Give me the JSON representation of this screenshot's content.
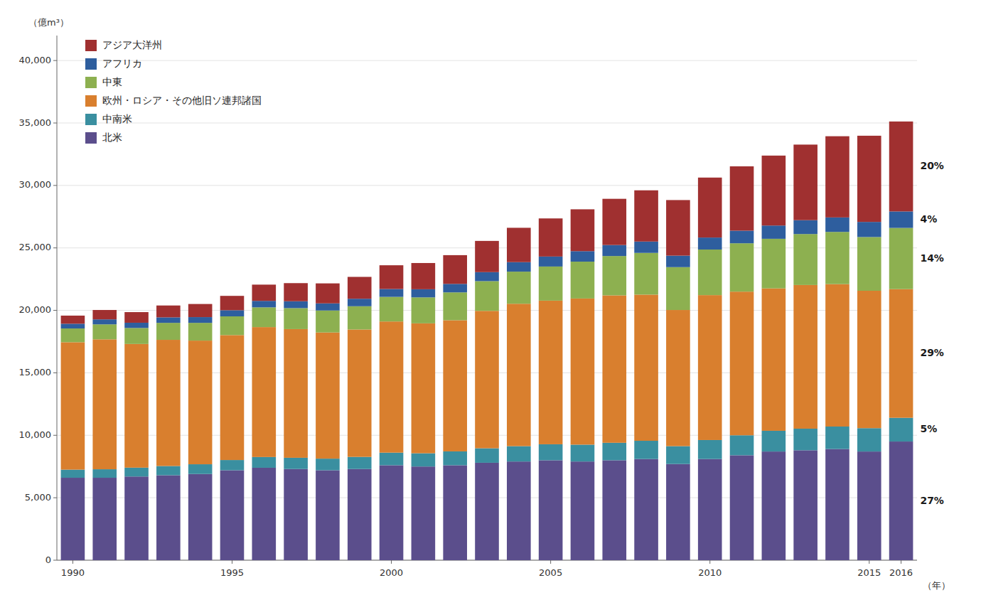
{
  "chart_data": {
    "type": "bar",
    "stacked": true,
    "categories": [
      1990,
      null,
      null,
      null,
      null,
      1995,
      null,
      null,
      null,
      null,
      2000,
      null,
      null,
      null,
      null,
      2005,
      null,
      null,
      null,
      null,
      2010,
      null,
      null,
      null,
      null,
      2015,
      2016
    ],
    "series": [
      {
        "name": "北米",
        "color": "#5b4e8c",
        "values": [
          6600,
          6600,
          6700,
          6800,
          6900,
          7200,
          7400,
          7300,
          7200,
          7300,
          7600,
          7500,
          7600,
          7800,
          7900,
          8000,
          7900,
          8000,
          8100,
          7700,
          8100,
          8400,
          8700,
          8800,
          8900,
          8700,
          9500
        ]
      },
      {
        "name": "中南米",
        "color": "#3a8fa0",
        "values": [
          650,
          680,
          710,
          740,
          780,
          820,
          860,
          900,
          930,
          970,
          1010,
          1060,
          1110,
          1160,
          1230,
          1280,
          1350,
          1400,
          1460,
          1430,
          1520,
          1600,
          1660,
          1730,
          1800,
          1870,
          1900
        ]
      },
      {
        "name": "欧州・ロシア・その他旧ソ連邦諸国",
        "color": "#d97f2e",
        "values": [
          10200,
          10400,
          9900,
          10100,
          9900,
          10000,
          10400,
          10300,
          10100,
          10200,
          10500,
          10400,
          10500,
          11000,
          11400,
          11500,
          11700,
          11800,
          11700,
          10900,
          11600,
          11500,
          11400,
          11500,
          11400,
          11000,
          10300
        ]
      },
      {
        "name": "中東",
        "color": "#8db050",
        "values": [
          1100,
          1200,
          1280,
          1360,
          1420,
          1500,
          1580,
          1680,
          1760,
          1860,
          1970,
          2080,
          2230,
          2380,
          2570,
          2730,
          2950,
          3150,
          3340,
          3430,
          3650,
          3870,
          3970,
          4080,
          4180,
          4300,
          4900
        ]
      },
      {
        "name": "アフリカ",
        "color": "#2e5e9e",
        "values": [
          380,
          400,
          420,
          440,
          460,
          490,
          520,
          550,
          570,
          600,
          630,
          650,
          680,
          720,
          760,
          800,
          840,
          880,
          910,
          920,
          960,
          1010,
          1060,
          1110,
          1160,
          1210,
          1320
        ]
      },
      {
        "name": "アジア大洋州",
        "color": "#a03030",
        "values": [
          650,
          750,
          850,
          950,
          1050,
          1150,
          1300,
          1450,
          1600,
          1750,
          1900,
          2100,
          2300,
          2500,
          2750,
          3050,
          3350,
          3700,
          4100,
          4450,
          4800,
          5150,
          5600,
          6050,
          6500,
          6900,
          7200
        ]
      }
    ],
    "annotations": [
      {
        "text": "20%",
        "series": "アジア大洋州"
      },
      {
        "text": "4%",
        "series": "アフリカ"
      },
      {
        "text": "14%",
        "series": "中東"
      },
      {
        "text": "29%",
        "series": "欧州・ロシア・その他旧ソ連邦諸国"
      },
      {
        "text": "5%",
        "series": "中南米"
      },
      {
        "text": "27%",
        "series": "北米"
      }
    ],
    "ylabel": "（億m³）",
    "xlabel": "（年）",
    "ylim": [
      0,
      42000
    ],
    "yticks": [
      0,
      {
        "value": 5000,
        "label": "5,000"
      },
      {
        "value": 10000,
        "label": "10,000"
      },
      {
        "value": 15000,
        "label": "15,000"
      },
      {
        "value": 20000,
        "label": "20,000"
      },
      {
        "value": 25000,
        "label": "25,000"
      },
      {
        "value": 30000,
        "label": "30,000"
      },
      {
        "value": 35000,
        "label": "35,000"
      },
      {
        "value": 40000,
        "label": "40,000"
      }
    ],
    "grid": true,
    "legend": "upper left"
  }
}
